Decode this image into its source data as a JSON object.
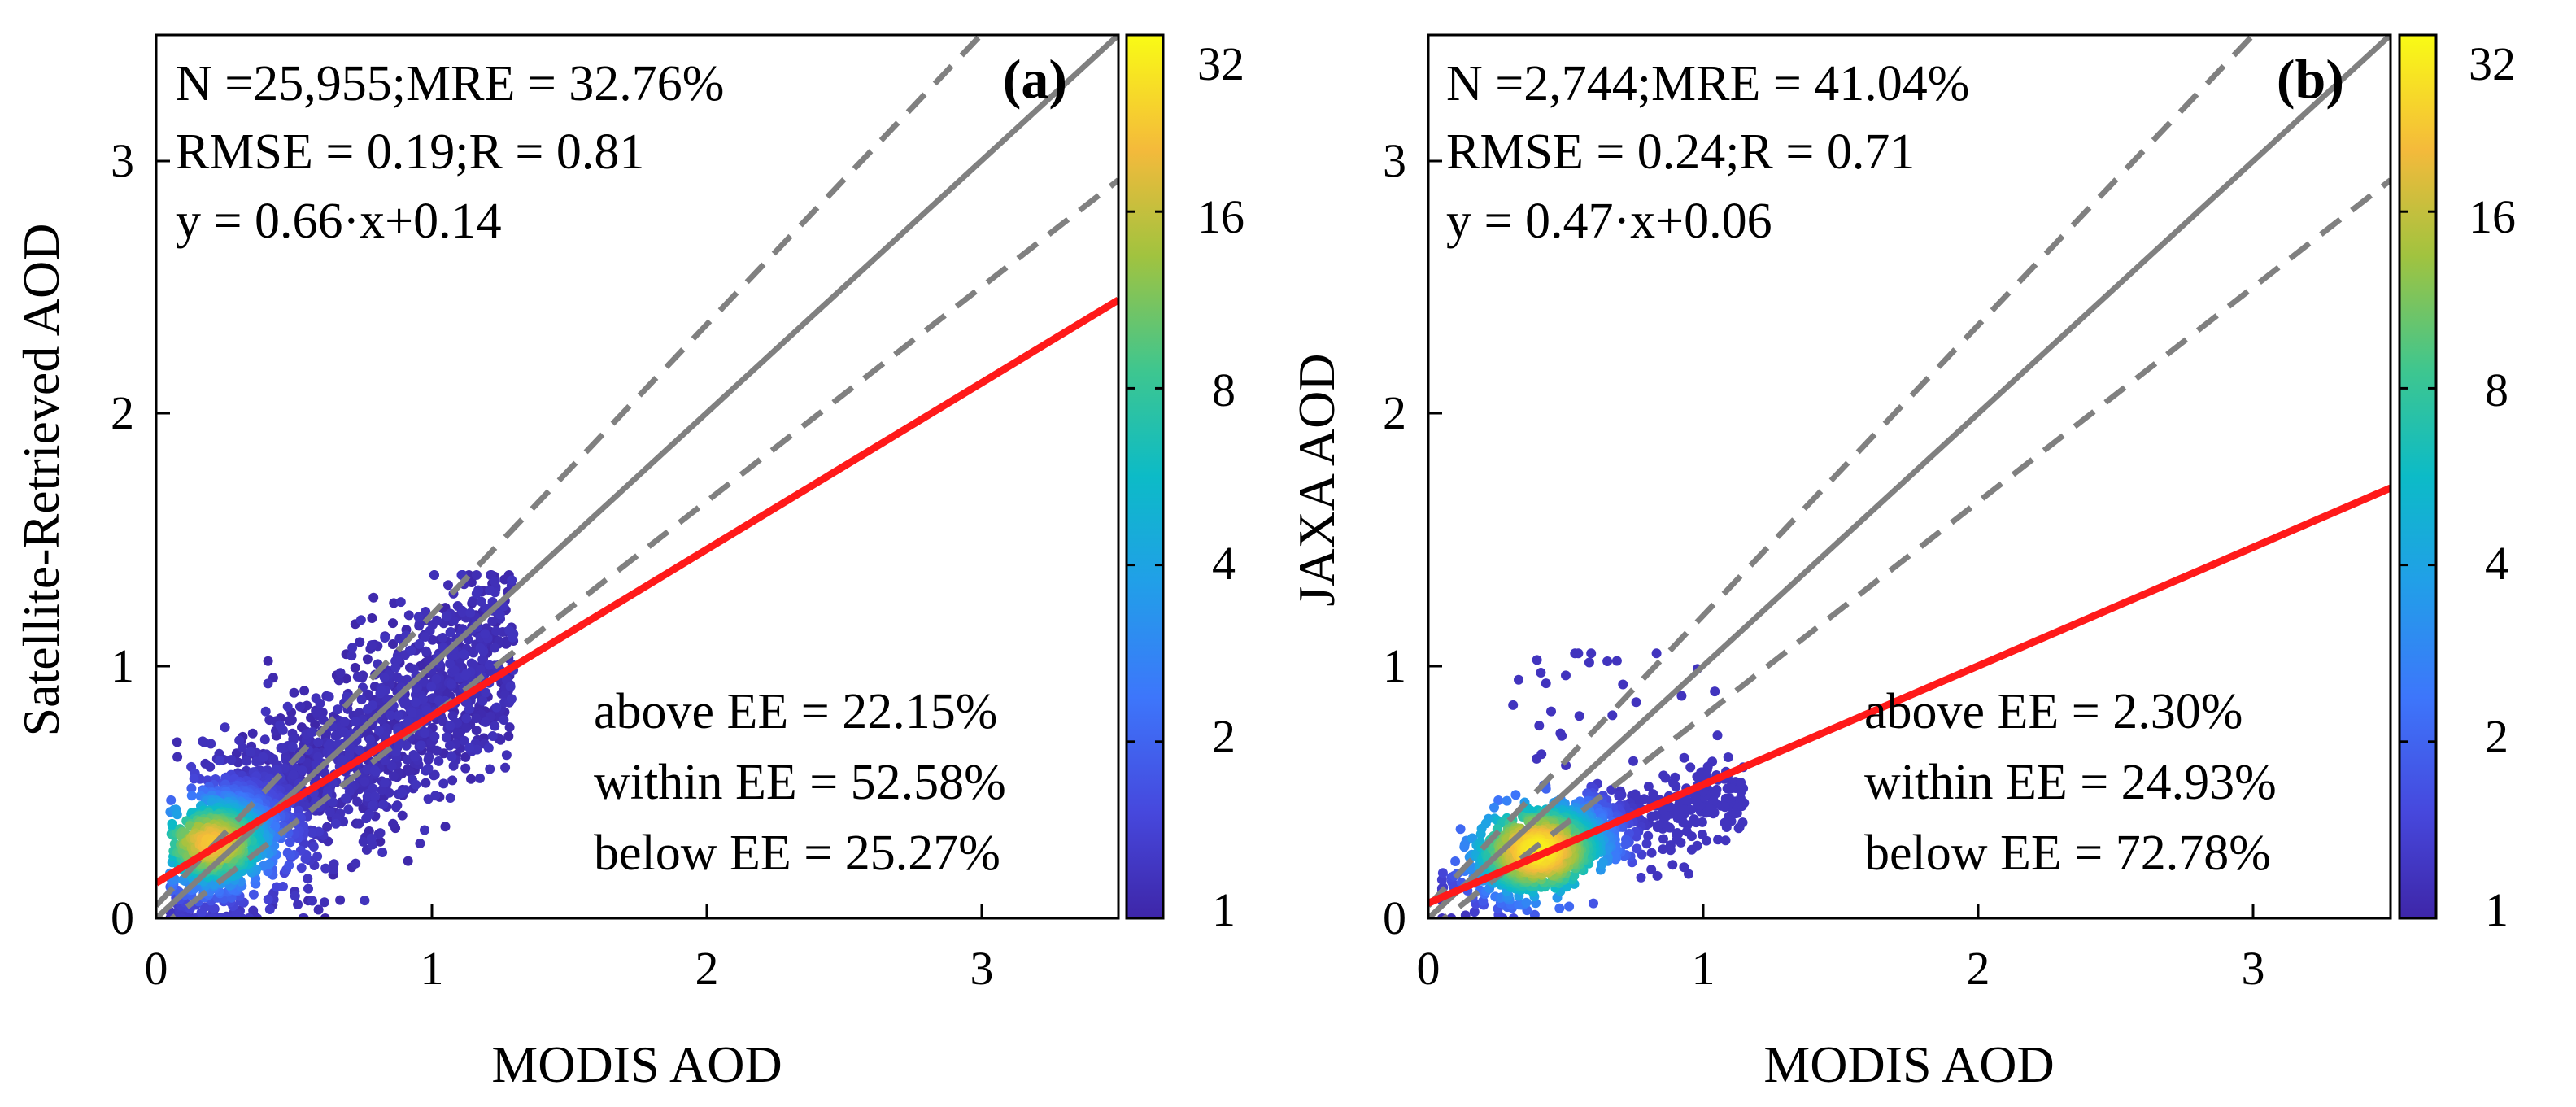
{
  "chart_data": [
    {
      "type": "scatter",
      "panel_label": "(a)",
      "xlabel": "MODIS AOD",
      "ylabel": "Satellite-Retrieved AOD",
      "xlim": [
        0,
        3.5
      ],
      "ylim": [
        0,
        3.5
      ],
      "xticks": [
        0,
        1,
        2,
        3
      ],
      "yticks": [
        0,
        1,
        2,
        3
      ],
      "stats": [
        "N =25,955;MRE = 32.76%",
        "RMSE = 0.19;R = 0.81",
        "y = 0.66·x+0.14"
      ],
      "ee_stats": [
        "above EE = 22.15%",
        "within EE = 52.58%",
        "below EE = 25.27%"
      ],
      "fit": {
        "slope": 0.66,
        "intercept": 0.14
      },
      "ee_envelope": {
        "slope_upper": 1.15,
        "slope_lower": 0.85,
        "offset": 0.05
      },
      "cluster": {
        "x_range": [
          0.0,
          1.42
        ],
        "y_range": [
          0.0,
          1.36
        ],
        "peak_x": 0.2,
        "peak_y": 0.3,
        "count": 25955
      },
      "colorbar": {
        "label_values": [
          "32",
          "16",
          "8",
          "4",
          "2",
          "1"
        ],
        "scale": "log2",
        "range": [
          1,
          32
        ]
      }
    },
    {
      "type": "scatter",
      "panel_label": "(b)",
      "xlabel": "MODIS AOD",
      "ylabel": "JAXA AOD",
      "xlim": [
        0,
        3.5
      ],
      "ylim": [
        0,
        3.5
      ],
      "xticks": [
        0,
        1,
        2,
        3
      ],
      "yticks": [
        0,
        1,
        2,
        3
      ],
      "stats": [
        "N =2,744;MRE = 41.04%",
        "RMSE = 0.24;R = 0.71",
        "y = 0.47·x+0.06"
      ],
      "ee_stats": [
        "above EE = 2.30%",
        "within EE = 24.93%",
        "below EE = 72.78%"
      ],
      "fit": {
        "slope": 0.47,
        "intercept": 0.06
      },
      "ee_envelope": {
        "slope_upper": 1.15,
        "slope_lower": 0.85,
        "offset": 0.05
      },
      "cluster": {
        "x_range": [
          0.05,
          1.3
        ],
        "y_range": [
          0.0,
          1.05
        ],
        "peak_x": 0.4,
        "peak_y": 0.27,
        "count": 2744
      },
      "colorbar": {
        "label_values": [
          "32",
          "16",
          "8",
          "4",
          "2",
          "1"
        ],
        "scale": "log2",
        "range": [
          1,
          32
        ]
      }
    }
  ]
}
